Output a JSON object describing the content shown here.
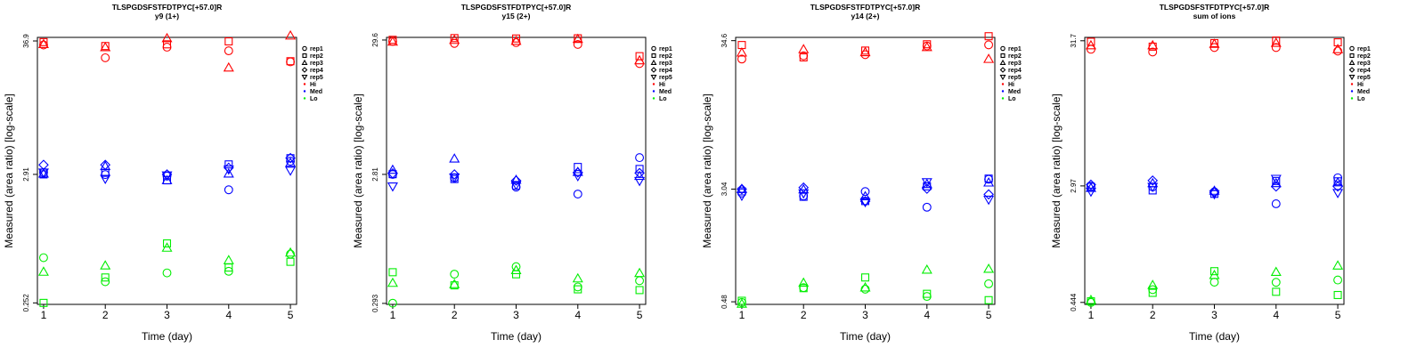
{
  "chart_data": [
    {
      "type": "scatter",
      "title": "TLSPGDSFSTFDTPYC[+57.0]R",
      "subtitle": "y9 (1+)",
      "xlabel": "Time (day)",
      "ylabel": "Measured (area ratio) [log-scale]",
      "scale": "log",
      "xticks": [
        1,
        2,
        3,
        4,
        5
      ],
      "yticks": [
        "0.252",
        "2.91",
        "36.9"
      ],
      "ylim": [
        0.245,
        39.5
      ],
      "legend": {
        "position": "right",
        "shapes": [
          "rep1",
          "rep2",
          "rep3",
          "rep4",
          "rep5"
        ],
        "levels": [
          "Hi",
          "Med",
          "Lo"
        ]
      },
      "series": [
        {
          "group": "Hi",
          "color": "#ff0000",
          "points": {
            "rep1": [
              34.2,
              26.8,
              32.8,
              30.6,
              24.8
            ],
            "rep2": [
              36.1,
              33.5,
              34.6,
              36.6,
              25.1
            ],
            "rep3": [
              34.7,
              32.7,
              38.8,
              22.2,
              40.8
            ],
            "rep4": [],
            "rep5": []
          }
        },
        {
          "group": "Med",
          "color": "#0000ff",
          "points": {
            "rep1": [
              3.02,
              2.9,
              2.82,
              2.17,
              3.74
            ],
            "rep2": [
              2.91,
              3.0,
              2.6,
              3.52,
              3.96
            ],
            "rep3": [
              2.95,
              3.4,
              2.6,
              2.95,
              3.62
            ],
            "rep4": [
              3.49,
              3.49,
              2.91,
              3.3,
              3.97
            ],
            "rep5": [
              3.02,
              2.68,
              2.86,
              3.2,
              3.13
            ]
          }
        },
        {
          "group": "Lo",
          "color": "#00ee00",
          "points": {
            "rep1": [
              0.596,
              0.377,
              0.446,
              0.46,
              0.638
            ],
            "rep2": [
              0.252,
              0.409,
              0.782,
              0.494,
              0.551
            ],
            "rep3": [
              0.455,
              0.513,
              0.719,
              0.567,
              0.655
            ],
            "rep4": [],
            "rep5": []
          }
        }
      ]
    },
    {
      "type": "scatter",
      "title": "TLSPGDSFSTFDTPYC[+57.0]R",
      "subtitle": "y15 (2+)",
      "xlabel": "Time (day)",
      "ylabel": "Measured (area ratio) [log-scale]",
      "scale": "log",
      "xticks": [
        1,
        2,
        3,
        4,
        5
      ],
      "yticks": [
        "0.293",
        "2.81",
        "29.6"
      ],
      "ylim": [
        0.288,
        31.0
      ],
      "legend": {
        "position": "right",
        "shapes": [
          "rep1",
          "rep2",
          "rep3",
          "rep4",
          "rep5"
        ],
        "levels": [
          "Hi",
          "Med",
          "Lo"
        ]
      },
      "series": [
        {
          "group": "Hi",
          "color": "#ff0000",
          "points": {
            "rep1": [
              28.9,
              27.9,
              28.3,
              27.4,
              19.6
            ],
            "rep2": [
              29.7,
              30.6,
              30.4,
              30.5,
              22.3
            ],
            "rep3": [
              28.7,
              29.6,
              29.1,
              30.1,
              20.7
            ],
            "rep4": [],
            "rep5": []
          }
        },
        {
          "group": "Med",
          "color": "#0000ff",
          "points": {
            "rep1": [
              2.81,
              2.65,
              2.25,
              1.99,
              3.77
            ],
            "rep2": [
              2.82,
              2.59,
              2.31,
              3.2,
              3.09
            ],
            "rep3": [
              3.04,
              3.7,
              2.55,
              2.93,
              2.73
            ],
            "rep4": [
              2.86,
              2.81,
              2.52,
              2.91,
              2.88
            ],
            "rep5": [
              2.28,
              2.67,
              2.34,
              2.73,
              2.51
            ]
          }
        },
        {
          "group": "Lo",
          "color": "#00ee00",
          "points": {
            "rep1": [
              0.294,
              0.489,
              0.558,
              0.391,
              0.436
            ],
            "rep2": [
              0.506,
              0.402,
              0.488,
              0.375,
              0.37
            ],
            "rep3": [
              0.419,
              0.41,
              0.524,
              0.453,
              0.498
            ],
            "rep4": [],
            "rep5": []
          }
        }
      ]
    },
    {
      "type": "scatter",
      "title": "TLSPGDSFSTFDTPYC[+57.0]R",
      "subtitle": "y14 (2+)",
      "xlabel": "Time (day)",
      "ylabel": "Measured (area ratio) [log-scale]",
      "scale": "log",
      "xticks": [
        1,
        2,
        3,
        4,
        5
      ],
      "yticks": [
        "0.48",
        "3.04",
        "34.6"
      ],
      "ylim": [
        0.46,
        36.5
      ],
      "legend": {
        "position": "right",
        "shapes": [
          "rep1",
          "rep2",
          "rep3",
          "rep4",
          "rep5"
        ],
        "levels": [
          "Hi",
          "Med",
          "Lo"
        ]
      },
      "series": [
        {
          "group": "Hi",
          "color": "#ff0000",
          "points": {
            "rep1": [
              25.6,
              27.0,
              27.5,
              31.7,
              32.3
            ],
            "rep2": [
              32.2,
              26.3,
              29.4,
              32.6,
              37.2
            ],
            "rep3": [
              28.4,
              30.0,
              28.6,
              31.1,
              25.6
            ],
            "rep4": [],
            "rep5": []
          }
        },
        {
          "group": "Med",
          "color": "#0000ff",
          "points": {
            "rep1": [
              2.85,
              2.72,
              2.92,
              2.26,
              3.57
            ],
            "rep2": [
              2.93,
              2.68,
              2.5,
              3.18,
              3.61
            ],
            "rep3": [
              3.04,
              3.02,
              2.7,
              3.3,
              3.38
            ],
            "rep4": [
              3.04,
              3.12,
              2.49,
              3.06,
              2.79
            ],
            "rep5": [
              2.73,
              2.84,
              2.46,
              3.41,
              2.56
            ]
          }
        },
        {
          "group": "Lo",
          "color": "#00ee00",
          "points": {
            "rep1": [
              0.475,
              0.605,
              0.59,
              0.524,
              0.645
            ],
            "rep2": [
              0.488,
              0.6,
              0.715,
              0.547,
              0.493
            ],
            "rep3": [
              0.464,
              0.655,
              0.606,
              0.811,
              0.822
            ],
            "rep4": [],
            "rep5": []
          }
        }
      ]
    },
    {
      "type": "scatter",
      "title": "TLSPGDSFSTFDTPYC[+57.0]R",
      "subtitle": "sum of ions",
      "xlabel": "Time (day)",
      "ylabel": "Measured (area ratio) [log-scale]",
      "scale": "log",
      "xticks": [
        1,
        2,
        3,
        4,
        5
      ],
      "yticks": [
        "0.444",
        "2.97",
        "31.7"
      ],
      "ylim": [
        0.43,
        33.5
      ],
      "legend": {
        "position": "right",
        "shapes": [
          "rep1",
          "rep2",
          "rep3",
          "rep4",
          "rep5"
        ],
        "levels": [
          "Hi",
          "Med",
          "Lo"
        ]
      },
      "series": [
        {
          "group": "Hi",
          "color": "#ff0000",
          "points": {
            "rep1": [
              27.6,
              26.4,
              28.4,
              28.4,
              26.8
            ],
            "rep2": [
              31.2,
              28.8,
              30.5,
              31.8,
              30.9
            ],
            "rep3": [
              29.4,
              29.4,
              30.1,
              30.6,
              27.6
            ],
            "rep4": [],
            "rep5": []
          }
        },
        {
          "group": "Med",
          "color": "#0000ff",
          "points": {
            "rep1": [
              2.95,
              2.92,
              2.7,
              2.22,
              3.39
            ],
            "rep2": [
              2.93,
              2.76,
              2.61,
              3.22,
              3.2
            ],
            "rep3": [
              2.87,
              3.1,
              2.74,
              3.1,
              3.14
            ],
            "rep4": [
              3.03,
              3.24,
              2.67,
              2.94,
              2.94
            ],
            "rep5": [
              2.71,
              2.93,
              2.6,
              3.34,
              2.65
            ]
          }
        },
        {
          "group": "Lo",
          "color": "#00ee00",
          "points": {
            "rep1": [
              0.444,
              0.547,
              0.618,
              0.616,
              0.64
            ],
            "rep2": [
              0.452,
              0.519,
              0.739,
              0.528,
              0.501
            ],
            "rep3": [
              0.461,
              0.589,
              0.693,
              0.729,
              0.809
            ],
            "rep4": [],
            "rep5": []
          }
        }
      ]
    }
  ]
}
